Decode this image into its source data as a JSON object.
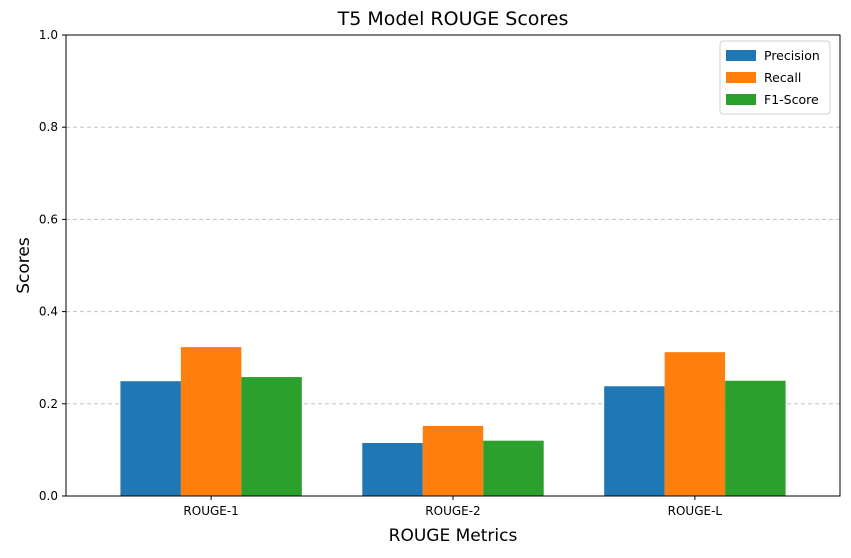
{
  "chart_data": {
    "type": "bar",
    "title": "T5 Model ROUGE Scores",
    "xlabel": "ROUGE Metrics",
    "ylabel": "Scores",
    "categories": [
      "ROUGE-1",
      "ROUGE-2",
      "ROUGE-L"
    ],
    "series": [
      {
        "name": "Precision",
        "color": "#1f77b4",
        "values": [
          0.249,
          0.115,
          0.238
        ]
      },
      {
        "name": "Recall",
        "color": "#ff7f0e",
        "values": [
          0.323,
          0.152,
          0.312
        ]
      },
      {
        "name": "F1-Score",
        "color": "#2ca02c",
        "values": [
          0.258,
          0.12,
          0.25
        ]
      }
    ],
    "ylim": [
      0,
      1.0
    ],
    "yticks": [
      "0.0",
      "0.2",
      "0.4",
      "0.6",
      "0.8",
      "1.0"
    ],
    "grid": {
      "y": true,
      "style": "dashed"
    },
    "legend": "top-right"
  }
}
